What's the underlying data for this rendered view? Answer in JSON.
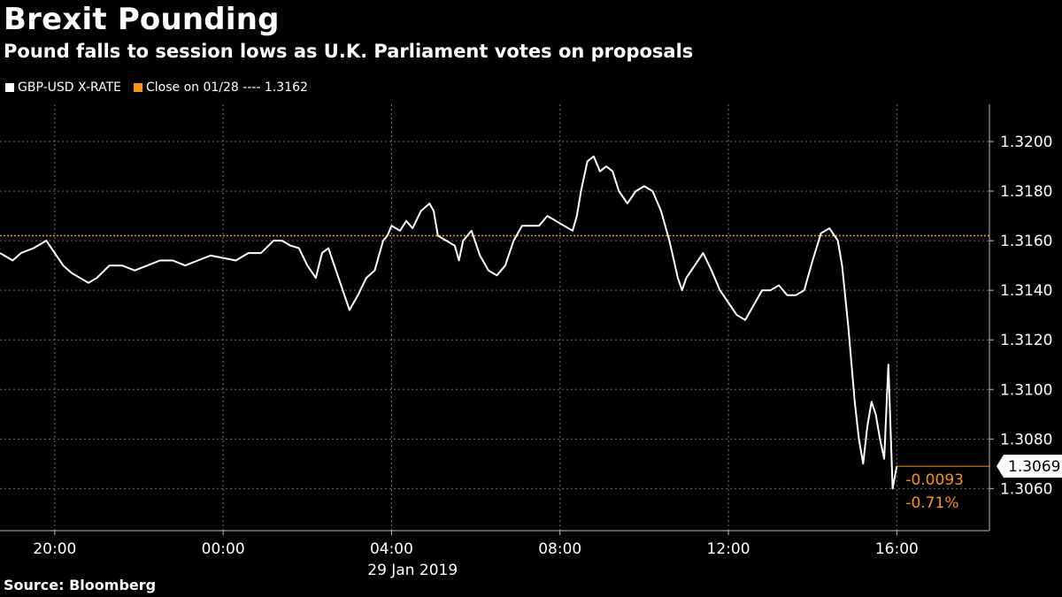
{
  "title": "Brexit Pounding",
  "subtitle": "Pound falls to session lows as U.K. Parliament votes on proposals",
  "source": "Source: Bloomberg",
  "legend": {
    "series_label": "GBP-USD X-RATE",
    "close_label": "Close on 01/28 ---- 1.3162"
  },
  "colors": {
    "background": "#000000",
    "series": "#ffffff",
    "accent": "#f7941d",
    "grid": "#6e6e6e"
  },
  "chart_data": {
    "type": "line",
    "title": "Brexit Pounding",
    "xlabel": "29 Jan 2019",
    "ylabel": "",
    "x_unit": "hours relative to 29 Jan 2019 00:00",
    "xlim": [
      -5.3,
      18.2
    ],
    "ylim": [
      1.3043,
      1.3215
    ],
    "x_ticks": [
      {
        "value": -4,
        "label": "20:00"
      },
      {
        "value": 0,
        "label": "00:00"
      },
      {
        "value": 4,
        "label": "04:00"
      },
      {
        "value": 8,
        "label": "08:00"
      },
      {
        "value": 12,
        "label": "12:00"
      },
      {
        "value": 16,
        "label": "16:00"
      }
    ],
    "date_label": "29 Jan 2019",
    "y_ticks": [
      "1.3060",
      "1.3080",
      "1.3100",
      "1.3120",
      "1.3140",
      "1.3160",
      "1.3180",
      "1.3200"
    ],
    "reference_line": {
      "name": "Close on 01/28",
      "value": 1.3162
    },
    "last_value": {
      "value": 1.3069,
      "label": "1.3069"
    },
    "change_labels": [
      "-0.0093",
      "-0.71%"
    ],
    "series": [
      {
        "name": "GBP-USD X-RATE",
        "x": [
          -5.3,
          -5.0,
          -4.8,
          -4.5,
          -4.2,
          -4.0,
          -3.8,
          -3.6,
          -3.4,
          -3.2,
          -3.0,
          -2.7,
          -2.4,
          -2.1,
          -1.8,
          -1.5,
          -1.2,
          -0.9,
          -0.6,
          -0.3,
          0.0,
          0.3,
          0.6,
          0.9,
          1.2,
          1.4,
          1.6,
          1.8,
          2.0,
          2.2,
          2.35,
          2.5,
          2.6,
          2.8,
          3.0,
          3.2,
          3.4,
          3.6,
          3.8,
          3.9,
          4.0,
          4.2,
          4.35,
          4.5,
          4.7,
          4.9,
          5.0,
          5.1,
          5.3,
          5.5,
          5.6,
          5.7,
          5.9,
          6.1,
          6.3,
          6.5,
          6.7,
          6.9,
          7.1,
          7.3,
          7.5,
          7.7,
          7.9,
          8.1,
          8.3,
          8.4,
          8.5,
          8.65,
          8.8,
          8.95,
          9.1,
          9.25,
          9.4,
          9.6,
          9.8,
          10.0,
          10.2,
          10.4,
          10.6,
          10.8,
          10.9,
          11.0,
          11.2,
          11.4,
          11.6,
          11.8,
          12.0,
          12.2,
          12.4,
          12.6,
          12.8,
          13.0,
          13.2,
          13.4,
          13.6,
          13.8,
          14.0,
          14.2,
          14.4,
          14.6,
          14.7,
          14.85,
          15.0,
          15.1,
          15.2,
          15.3,
          15.4,
          15.5,
          15.6,
          15.7,
          15.8,
          15.9,
          16.0
        ],
        "y": [
          1.3155,
          1.3152,
          1.3155,
          1.3157,
          1.316,
          1.3155,
          1.315,
          1.3147,
          1.3145,
          1.3143,
          1.3145,
          1.315,
          1.315,
          1.3148,
          1.315,
          1.3152,
          1.3152,
          1.315,
          1.3152,
          1.3154,
          1.3153,
          1.3152,
          1.3155,
          1.3155,
          1.316,
          1.316,
          1.3158,
          1.3157,
          1.315,
          1.3145,
          1.3155,
          1.3157,
          1.3152,
          1.3142,
          1.3132,
          1.3138,
          1.3145,
          1.3148,
          1.316,
          1.3162,
          1.3166,
          1.3164,
          1.3168,
          1.3165,
          1.3172,
          1.3175,
          1.3172,
          1.3162,
          1.316,
          1.3158,
          1.3152,
          1.316,
          1.3164,
          1.3154,
          1.3148,
          1.3146,
          1.315,
          1.316,
          1.3166,
          1.3166,
          1.3166,
          1.317,
          1.3168,
          1.3166,
          1.3164,
          1.317,
          1.318,
          1.3192,
          1.3194,
          1.3188,
          1.319,
          1.3188,
          1.318,
          1.3175,
          1.318,
          1.3182,
          1.318,
          1.3172,
          1.316,
          1.3145,
          1.314,
          1.3145,
          1.315,
          1.3155,
          1.3148,
          1.314,
          1.3135,
          1.313,
          1.3128,
          1.3134,
          1.314,
          1.314,
          1.3142,
          1.3138,
          1.3138,
          1.314,
          1.3152,
          1.3163,
          1.3165,
          1.316,
          1.315,
          1.3125,
          1.3095,
          1.308,
          1.307,
          1.3085,
          1.3095,
          1.309,
          1.308,
          1.3072,
          1.311,
          1.306,
          1.3069
        ]
      }
    ]
  }
}
